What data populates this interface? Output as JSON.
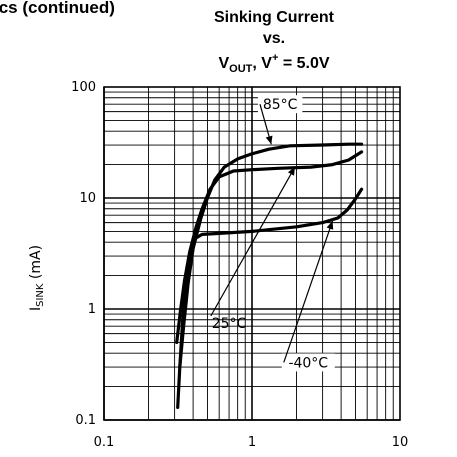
{
  "page_header": "ics (continued)",
  "chart_data": {
    "type": "line",
    "title_line1": "Sinking Current",
    "title_line2": "vs.",
    "title_line3_main": "V",
    "title_line3_sub": "OUT",
    "title_line3_mid": ", V",
    "title_line3_sup": "+",
    "title_line3_end": " = 5.0V",
    "xlabel": "",
    "ylabel_main": "I",
    "ylabel_sub": "SINK",
    "ylabel_unit": " (mA)",
    "xscale": "log",
    "yscale": "log",
    "xlim": [
      0.1,
      10
    ],
    "ylim": [
      0.1,
      100
    ],
    "x_ticks": [
      {
        "value": 0.1,
        "label": "0.1"
      },
      {
        "value": 1,
        "label": "1"
      },
      {
        "value": 10,
        "label": "10"
      }
    ],
    "y_ticks": [
      {
        "value": 0.1,
        "label": "0.1"
      },
      {
        "value": 1,
        "label": "1"
      },
      {
        "value": 10,
        "label": "10"
      },
      {
        "value": 100,
        "label": "100"
      }
    ],
    "grid": true,
    "series": [
      {
        "name": "85°C",
        "points": [
          [
            0.325,
            0.3
          ],
          [
            0.345,
            0.7
          ],
          [
            0.37,
            1.7
          ],
          [
            0.4,
            3.5
          ],
          [
            0.45,
            6.5
          ],
          [
            0.5,
            10
          ],
          [
            0.56,
            14.5
          ],
          [
            0.65,
            19
          ],
          [
            0.8,
            22.5
          ],
          [
            1.0,
            25
          ],
          [
            1.3,
            27.5
          ],
          [
            1.8,
            29.5
          ],
          [
            3,
            30
          ],
          [
            4.5,
            30.5
          ],
          [
            5.5,
            30.5
          ]
        ]
      },
      {
        "name": "25°C",
        "points": [
          [
            0.31,
            0.5
          ],
          [
            0.33,
            1
          ],
          [
            0.35,
            1.8
          ],
          [
            0.38,
            3.3
          ],
          [
            0.42,
            5.5
          ],
          [
            0.46,
            8
          ],
          [
            0.52,
            12
          ],
          [
            0.6,
            15.5
          ],
          [
            0.75,
            17.5
          ],
          [
            1.0,
            18
          ],
          [
            1.5,
            18.5
          ],
          [
            2.5,
            19
          ],
          [
            3.5,
            20
          ],
          [
            4.5,
            22
          ],
          [
            5.5,
            26
          ]
        ]
      },
      {
        "name": "-40°C",
        "points": [
          [
            0.315,
            0.13
          ],
          [
            0.325,
            0.3
          ],
          [
            0.34,
            0.8
          ],
          [
            0.36,
            1.8
          ],
          [
            0.38,
            3.2
          ],
          [
            0.41,
            4.3
          ],
          [
            0.46,
            4.7
          ],
          [
            0.6,
            4.8
          ],
          [
            1.0,
            5.0
          ],
          [
            2.0,
            5.5
          ],
          [
            3.0,
            6.0
          ],
          [
            3.8,
            6.6
          ],
          [
            4.4,
            7.8
          ],
          [
            5.0,
            9.8
          ],
          [
            5.5,
            12
          ]
        ]
      }
    ],
    "annotations": [
      {
        "series": "85°C",
        "text": "85°C",
        "tx": 1.55,
        "ty": 70,
        "ax": 1.35,
        "ay": 30.5,
        "box": true
      },
      {
        "series": "25°C",
        "text": "25°C",
        "tx": 0.7,
        "ty": 0.75,
        "ax": 1.95,
        "ay": 19,
        "box": false
      },
      {
        "series": "-40°C",
        "text": "-40°C",
        "tx": 2.4,
        "ty": 0.33,
        "ax": 3.5,
        "ay": 6.2,
        "box": true
      }
    ]
  }
}
